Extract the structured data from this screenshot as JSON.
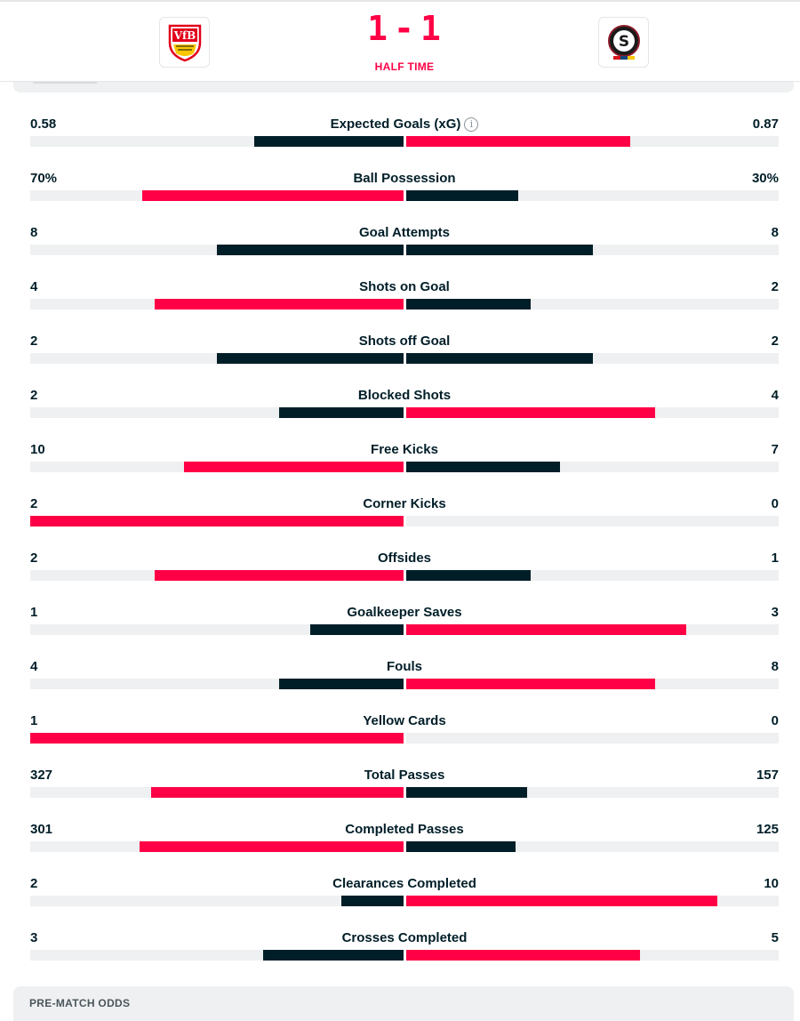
{
  "match": {
    "home_score": "1",
    "away_score": "1",
    "status": "HALF TIME",
    "home_logo_text": "VfB",
    "away_logo_text": "S"
  },
  "colors": {
    "accent": "#ff0046",
    "dark": "#001e28",
    "track": "#eef0f1"
  },
  "stats": [
    {
      "category": "Expected Goals (xG)",
      "home": "0.58",
      "away": "0.87",
      "home_value": 0.58,
      "away_value": 0.87,
      "info": true
    },
    {
      "category": "Ball Possession",
      "home": "70%",
      "away": "30%",
      "home_value": 70,
      "away_value": 30
    },
    {
      "category": "Goal Attempts",
      "home": "8",
      "away": "8",
      "home_value": 8,
      "away_value": 8
    },
    {
      "category": "Shots on Goal",
      "home": "4",
      "away": "2",
      "home_value": 4,
      "away_value": 2
    },
    {
      "category": "Shots off Goal",
      "home": "2",
      "away": "2",
      "home_value": 2,
      "away_value": 2
    },
    {
      "category": "Blocked Shots",
      "home": "2",
      "away": "4",
      "home_value": 2,
      "away_value": 4
    },
    {
      "category": "Free Kicks",
      "home": "10",
      "away": "7",
      "home_value": 10,
      "away_value": 7
    },
    {
      "category": "Corner Kicks",
      "home": "2",
      "away": "0",
      "home_value": 2,
      "away_value": 0
    },
    {
      "category": "Offsides",
      "home": "2",
      "away": "1",
      "home_value": 2,
      "away_value": 1
    },
    {
      "category": "Goalkeeper Saves",
      "home": "1",
      "away": "3",
      "home_value": 1,
      "away_value": 3
    },
    {
      "category": "Fouls",
      "home": "4",
      "away": "8",
      "home_value": 4,
      "away_value": 8
    },
    {
      "category": "Yellow Cards",
      "home": "1",
      "away": "0",
      "home_value": 1,
      "away_value": 0
    },
    {
      "category": "Total Passes",
      "home": "327",
      "away": "157",
      "home_value": 327,
      "away_value": 157
    },
    {
      "category": "Completed Passes",
      "home": "301",
      "away": "125",
      "home_value": 301,
      "away_value": 125
    },
    {
      "category": "Clearances Completed",
      "home": "2",
      "away": "10",
      "home_value": 2,
      "away_value": 10
    },
    {
      "category": "Crosses Completed",
      "home": "3",
      "away": "5",
      "home_value": 3,
      "away_value": 5
    }
  ],
  "odds": {
    "title": "PRE-MATCH ODDS"
  }
}
